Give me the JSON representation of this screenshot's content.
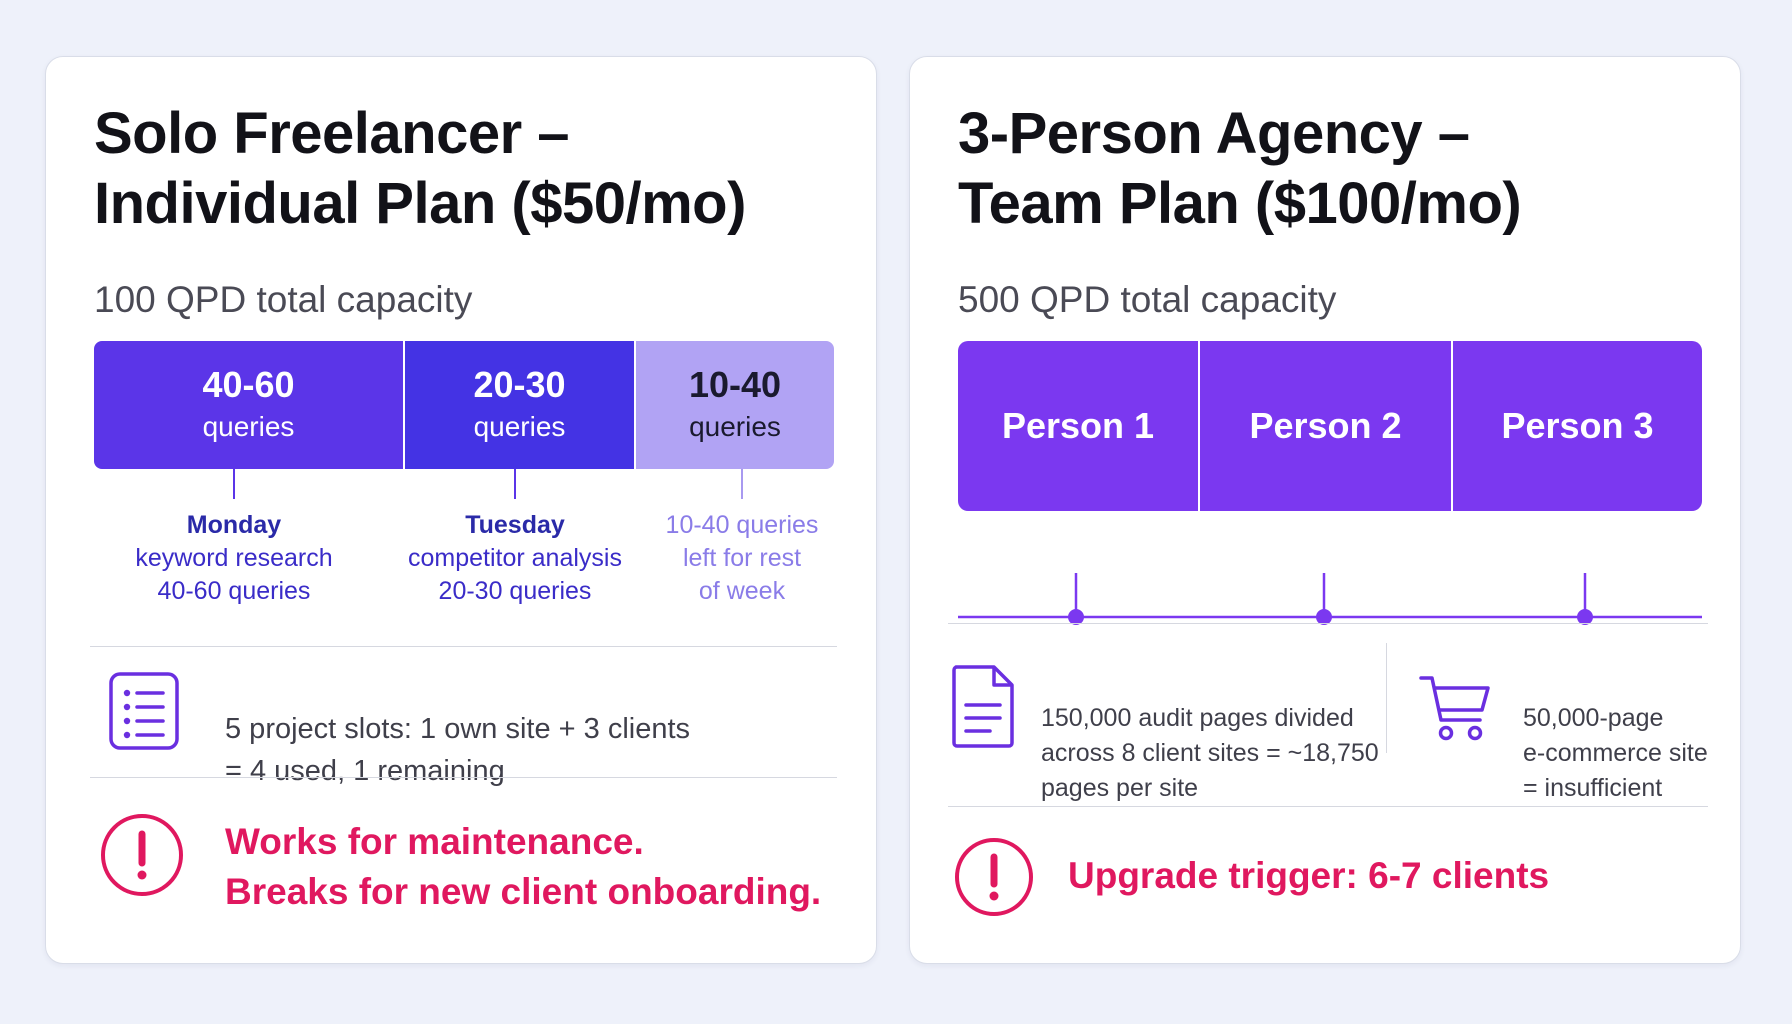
{
  "colors": {
    "page_bg": "#eef1fa",
    "card_bg": "#ffffff",
    "seg_monday": "#5b35e8",
    "seg_tuesday": "#4433e4",
    "seg_rest": "#b1a3f4",
    "person_bar": "#7b38f0",
    "icon_purple": "#6a2fe0",
    "warning": "#e0185f"
  },
  "individual": {
    "title_line1": "Solo Freelancer –",
    "title_line2": "Individual Plan ($50/mo)",
    "capacity": "100 QPD total capacity",
    "segments": [
      {
        "value": "40-60",
        "unit": "queries"
      },
      {
        "value": "20-30",
        "unit": "queries"
      },
      {
        "value": "10-40",
        "unit": "queries"
      }
    ],
    "annotations": [
      {
        "day": "Monday",
        "task": "keyword research",
        "amount": "40-60 queries"
      },
      {
        "day": "Tuesday",
        "task": "competitor analysis",
        "amount": "20-30 queries"
      },
      {
        "line1": "10-40 queries",
        "line2": "left for rest",
        "line3": "of week"
      }
    ],
    "slots_line1": "5 project slots: 1 own site + 3 clients",
    "slots_line2": "= 4 used, 1 remaining",
    "slots_icon": "list-icon",
    "warning_icon": "alert-circle-icon",
    "warning_line1": "Works for maintenance.",
    "warning_line2": "Breaks for new client onboarding."
  },
  "team": {
    "title_line1": "3-Person Agency –",
    "title_line2": "Team Plan ($100/mo)",
    "capacity": "500 QPD total capacity",
    "persons": [
      "Person 1",
      "Person 2",
      "Person 3"
    ],
    "audit_icon": "document-icon",
    "audit_line1": "150,000 audit pages divided",
    "audit_line2": "across 8 client sites = ~18,750",
    "audit_line3": "pages per site",
    "ecom_icon": "shopping-cart-icon",
    "ecom_line1": "50,000-page",
    "ecom_line2": "e-commerce site",
    "ecom_line3": "= insufficient",
    "warning_icon": "alert-circle-icon",
    "warning_text": "Upgrade trigger: 6-7 clients"
  }
}
